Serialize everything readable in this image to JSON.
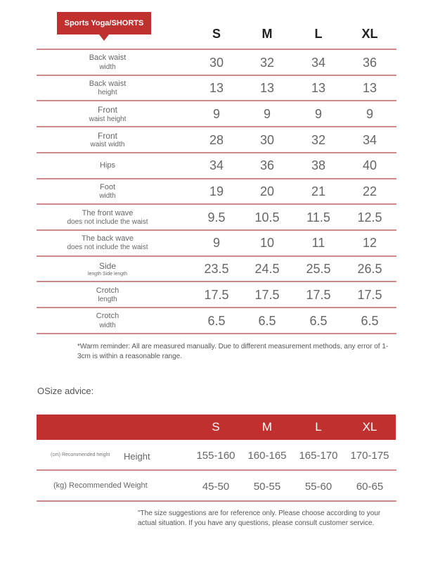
{
  "title": "Sports Yoga/SHORTS",
  "sizes": [
    "S",
    "M",
    "L",
    "XL"
  ],
  "measurements": [
    {
      "label": "Back waist",
      "sub": "width",
      "values": [
        "30",
        "32",
        "34",
        "36"
      ]
    },
    {
      "label": "Back waist",
      "sub": "height",
      "values": [
        "13",
        "13",
        "13",
        "13"
      ]
    },
    {
      "label": "Front",
      "sub": "waist height",
      "values": [
        "9",
        "9",
        "9",
        "9"
      ]
    },
    {
      "label": "Front",
      "sub": "waist width",
      "values": [
        "28",
        "30",
        "32",
        "34"
      ]
    },
    {
      "label": "Hips",
      "sub": "",
      "values": [
        "34",
        "36",
        "38",
        "40"
      ]
    },
    {
      "label": "Foot",
      "sub": "width",
      "values": [
        "19",
        "20",
        "21",
        "22"
      ]
    },
    {
      "label": "The front wave",
      "sub": "does not include the waist",
      "values": [
        "9.5",
        "10.5",
        "11.5",
        "12.5"
      ]
    },
    {
      "label": "The back wave",
      "sub": "does not include the waist",
      "values": [
        "9",
        "10",
        "11",
        "12"
      ]
    },
    {
      "label": "Side",
      "sub": "length Side length",
      "values": [
        "23.5",
        "24.5",
        "25.5",
        "26.5"
      ]
    },
    {
      "label": "Crotch",
      "sub": "length",
      "values": [
        "17.5",
        "17.5",
        "17.5",
        "17.5"
      ]
    },
    {
      "label": "Crotch",
      "sub": "width",
      "values": [
        "6.5",
        "6.5",
        "6.5",
        "6.5"
      ]
    }
  ],
  "reminder": "*Warm reminder: All are measured manually. Due to different measurement methods, any error of 1-3cm is within a reasonable range.",
  "advice_title": "OSize advice:",
  "advice": {
    "sizes": [
      "S",
      "M",
      "L",
      "XL"
    ],
    "height": {
      "small_label": "(cm) Recommended height",
      "label": "Height",
      "values": [
        "155-160",
        "160-165",
        "165-170",
        "170-175"
      ]
    },
    "weight": {
      "label": "(kg) Recommended Weight",
      "values": [
        "45-50",
        "50-55",
        "55-60",
        "60-65"
      ]
    }
  },
  "footer_note": "\"The size suggestions are for reference only. Please choose according to your actual situation. If you have any questions, please consult customer service.",
  "colors": {
    "accent": "#c0302e",
    "divider": "#cf8a8a"
  }
}
